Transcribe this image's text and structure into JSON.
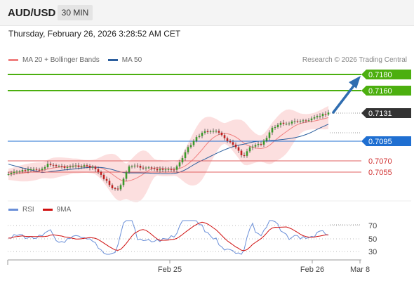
{
  "header": {
    "symbol": "AUD/USD",
    "timeframe": "30 MIN"
  },
  "timestamp": "Thursday, February 26, 2026 3:28:52 AM CET",
  "legend": {
    "ma20_label": "MA 20 + Bollinger Bands",
    "ma20_color": "#f08080",
    "ma50_label": "MA 50",
    "ma50_color": "#2c5f9e"
  },
  "source": "Research © 2026 Trading Central",
  "levels": {
    "resistance2": "0.7180",
    "resistance1": "0.7160",
    "current": "0.7131",
    "pivot": "0.7095",
    "support1": "0.7070",
    "support2": "0.7055"
  },
  "colors": {
    "resistance": "#4caf0f",
    "pivot": "#1f6fd1",
    "support": "#e06060",
    "current": "#333333",
    "arrow": "#2f6db0",
    "up_candle": "#3a9a2a",
    "down_candle": "#c02020"
  },
  "rsi_legend": {
    "rsi_label": "RSI",
    "rsi_color": "#6a8fd8",
    "ma9_label": "9MA",
    "ma9_color": "#d01010"
  },
  "rsi_axis": {
    "t70": "70",
    "t50": "50",
    "t30": "30"
  },
  "x_axis": {
    "label1": "Feb 25",
    "label2": "Feb 26",
    "label3": "Mar 8"
  }
}
